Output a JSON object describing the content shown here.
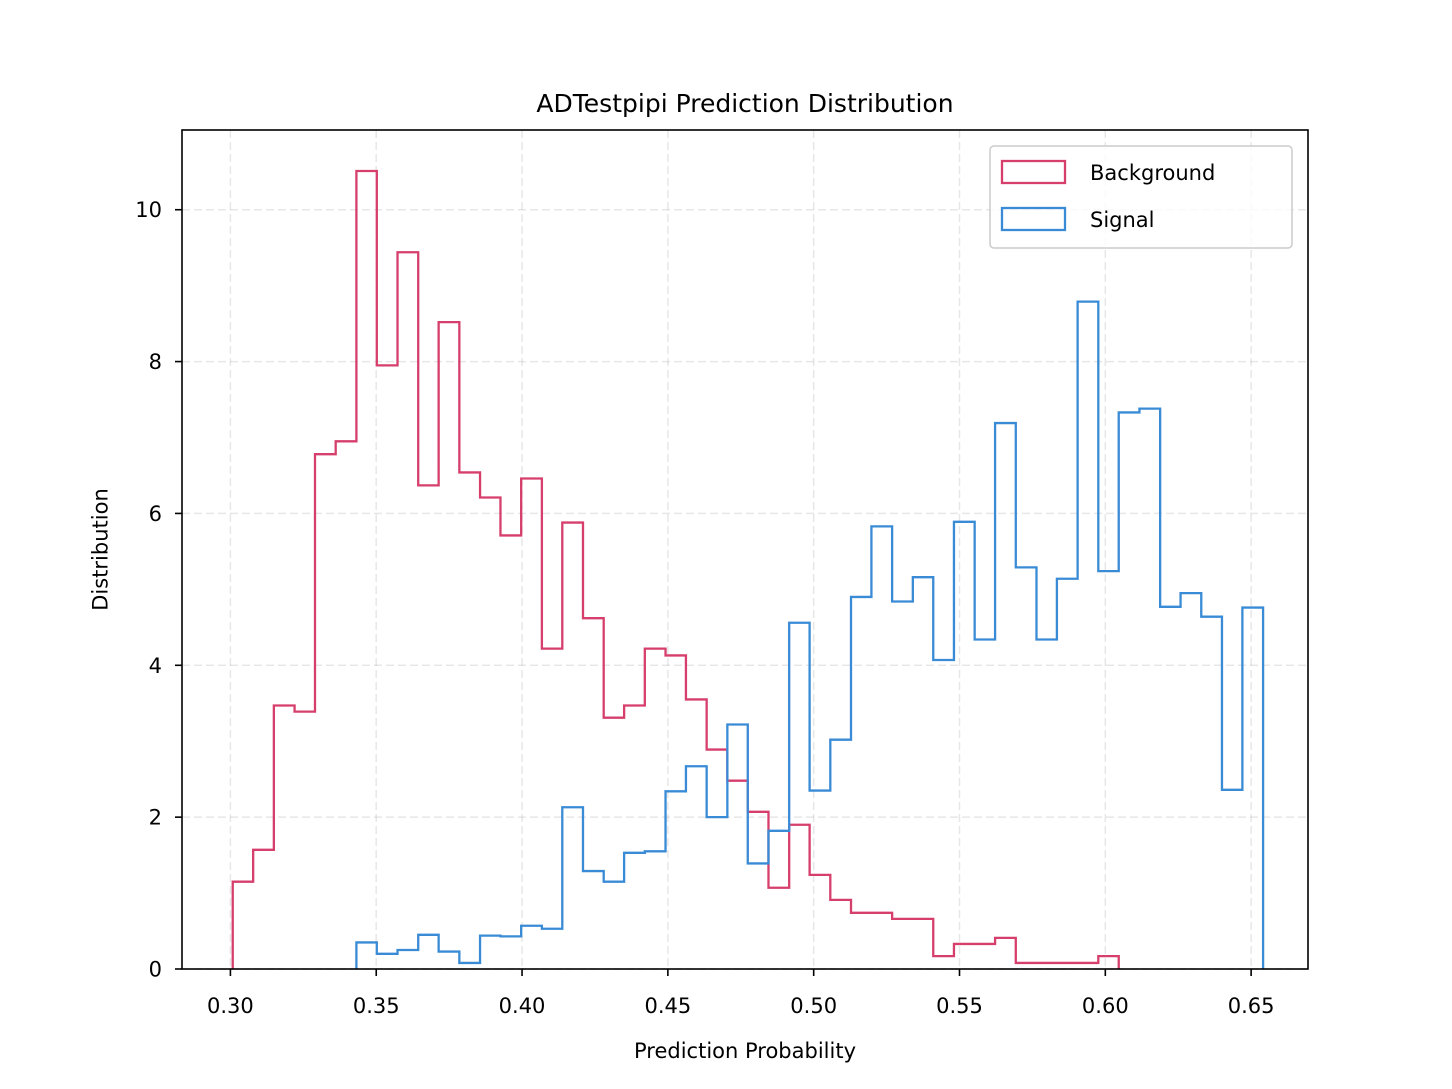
{
  "chart_data": {
    "type": "histogram",
    "title": "ADTestpipi Prediction Distribution",
    "xlabel": "Prediction Probability",
    "ylabel": "Distribution",
    "xlim": [
      0.2834,
      0.6695
    ],
    "ylim": [
      0,
      11.05
    ],
    "xticks": [
      "0.30",
      "0.35",
      "0.40",
      "0.45",
      "0.50",
      "0.55",
      "0.60",
      "0.65"
    ],
    "yticks": [
      "0",
      "2",
      "4",
      "6",
      "8",
      "10"
    ],
    "grid": true,
    "legend_position": "top-right",
    "series": [
      {
        "name": "Background",
        "color": "#d63f6c",
        "bin_edges": [
          0.3008,
          0.3078,
          0.3149,
          0.322,
          0.329,
          0.3361,
          0.3432,
          0.3502,
          0.3573,
          0.3644,
          0.3714,
          0.3785,
          0.3856,
          0.3926,
          0.3997,
          0.4068,
          0.4138,
          0.4209,
          0.428,
          0.435,
          0.4421,
          0.4492,
          0.4562,
          0.4633,
          0.4704,
          0.4774,
          0.4845,
          0.4916,
          0.4986,
          0.5057,
          0.5128,
          0.5198,
          0.5269,
          0.534,
          0.541,
          0.5481,
          0.5552,
          0.5622,
          0.5693,
          0.5764,
          0.5834,
          0.5905,
          0.5976,
          0.6046
        ],
        "values": [
          1.15,
          1.57,
          3.47,
          3.39,
          6.78,
          6.95,
          10.51,
          7.95,
          9.44,
          6.37,
          8.52,
          6.54,
          6.21,
          5.71,
          6.46,
          4.22,
          5.88,
          4.62,
          3.31,
          3.47,
          4.22,
          4.13,
          3.55,
          2.89,
          2.48,
          2.07,
          1.07,
          1.9,
          1.24,
          0.91,
          0.74,
          0.74,
          0.66,
          0.66,
          0.17,
          0.33,
          0.33,
          0.41,
          0.08,
          0.08,
          0.08,
          0.08,
          0.17
        ]
      },
      {
        "name": "Signal",
        "color": "#3a8bd6",
        "bin_edges": [
          0.3432,
          0.3502,
          0.3573,
          0.3644,
          0.3714,
          0.3785,
          0.3856,
          0.3926,
          0.3997,
          0.4068,
          0.4138,
          0.4209,
          0.428,
          0.435,
          0.4421,
          0.4492,
          0.4562,
          0.4633,
          0.4704,
          0.4774,
          0.4845,
          0.4916,
          0.4986,
          0.5057,
          0.5128,
          0.5198,
          0.5269,
          0.534,
          0.541,
          0.5481,
          0.5552,
          0.5622,
          0.5693,
          0.5764,
          0.5834,
          0.5905,
          0.5976,
          0.6046,
          0.6117,
          0.6188,
          0.6258,
          0.6329,
          0.64,
          0.647,
          0.6541
        ],
        "values": [
          0.35,
          0.2,
          0.25,
          0.45,
          0.23,
          0.08,
          0.44,
          0.43,
          0.57,
          0.53,
          2.13,
          1.29,
          1.15,
          1.53,
          1.55,
          2.34,
          2.67,
          2.0,
          3.22,
          1.39,
          1.82,
          4.56,
          2.35,
          3.02,
          4.9,
          5.83,
          4.84,
          5.16,
          4.07,
          5.89,
          4.34,
          7.19,
          5.29,
          4.34,
          5.14,
          8.79,
          5.24,
          7.33,
          7.38,
          4.77,
          4.95,
          4.64,
          2.36,
          4.76
        ]
      }
    ]
  }
}
